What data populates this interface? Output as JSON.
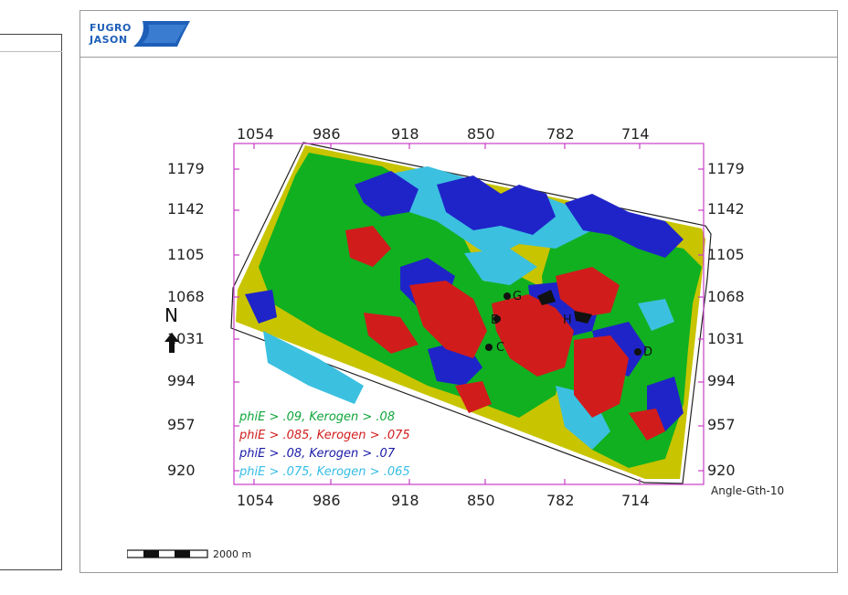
{
  "logo": {
    "line1": "FUGRO",
    "line2": "JASON"
  },
  "map": {
    "x_ticks": [
      "1054",
      "986",
      "918",
      "850",
      "782",
      "714"
    ],
    "y_ticks": [
      "1179",
      "1142",
      "1105",
      "1068",
      "1031",
      "994",
      "957",
      "920"
    ],
    "north_label": "N",
    "survey_label": "Angle-Gth-10",
    "well_labels": [
      "G",
      "E",
      "H",
      "C",
      "D"
    ],
    "legend": [
      {
        "label": "phiE > .09, Kerogen > .08",
        "color": "#0ea53a"
      },
      {
        "label": "phiE > .085, Kerogen > .075",
        "color": "#d11c1c"
      },
      {
        "label": "phiE > .08, Kerogen > .07",
        "color": "#1a1aa8"
      },
      {
        "label": "phiE > .075, Kerogen > .065",
        "color": "#35bde6"
      }
    ],
    "colors": {
      "frame": "#c83cc8",
      "background_fill": "#c8c400",
      "green": "#10b021",
      "red": "#d11c1c",
      "blue": "#1f24c8",
      "cyan": "#3cc0e0"
    }
  },
  "scale": {
    "label": "2000 m"
  }
}
